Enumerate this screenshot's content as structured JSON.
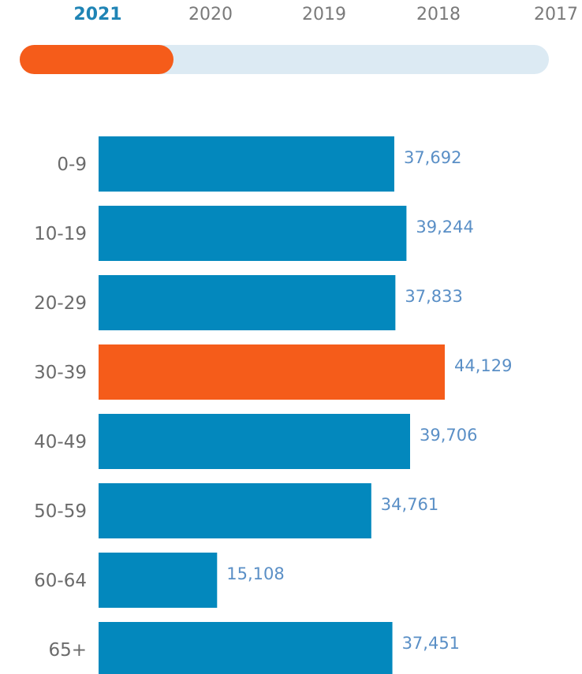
{
  "year_tabs": [
    {
      "label": "2021",
      "active": true
    },
    {
      "label": "2020",
      "active": false
    },
    {
      "label": "2019",
      "active": false
    },
    {
      "label": "2018",
      "active": false
    },
    {
      "label": "2017",
      "active": false
    }
  ],
  "timeline_progress": 0.29,
  "colors": {
    "bar": "#0388bd",
    "highlight": "#f55c1a",
    "value_text": "#5a8fc6",
    "active_year": "#1f84b5",
    "track": "#dceaf3"
  },
  "chart_data": {
    "type": "bar",
    "orientation": "horizontal",
    "categories": [
      "0-9",
      "10-19",
      "20-29",
      "30-39",
      "40-49",
      "50-59",
      "60-64",
      "65+"
    ],
    "values": [
      37692,
      39244,
      37833,
      44129,
      39706,
      34761,
      15108,
      37451
    ],
    "value_labels": [
      "37,692",
      "39,244",
      "37,833",
      "44,129",
      "39,706",
      "34,761",
      "15,108",
      "37,451"
    ],
    "highlight_index": 3,
    "xlim": [
      0,
      44129
    ],
    "title": "",
    "xlabel": "",
    "ylabel": ""
  }
}
